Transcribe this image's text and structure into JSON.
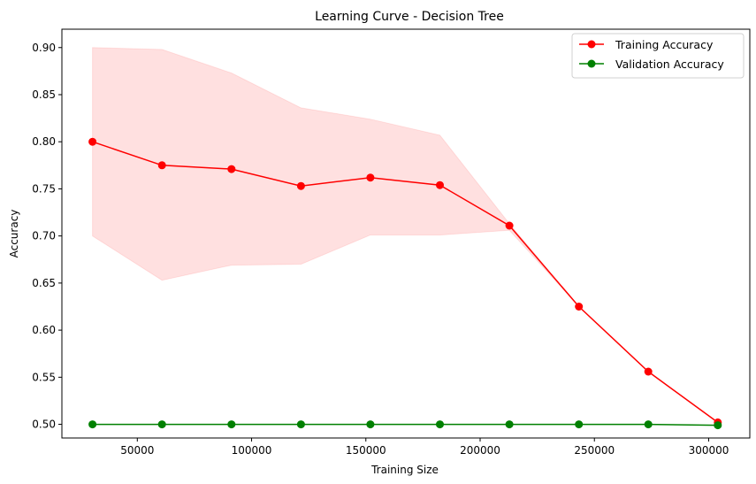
{
  "chart_data": {
    "type": "line",
    "title": "Learning Curve - Decision Tree",
    "xlabel": "Training Size",
    "ylabel": "Accuracy",
    "xlim": [
      17000,
      318000
    ],
    "ylim": [
      0.4855,
      0.9195
    ],
    "xticks": [
      50000,
      100000,
      150000,
      200000,
      250000,
      300000
    ],
    "xtick_labels": [
      "50000",
      "100000",
      "150000",
      "200000",
      "250000",
      "300000"
    ],
    "yticks": [
      0.5,
      0.55,
      0.6,
      0.65,
      0.7,
      0.75,
      0.8,
      0.85,
      0.9
    ],
    "ytick_labels": [
      "0.50",
      "0.55",
      "0.60",
      "0.65",
      "0.70",
      "0.75",
      "0.80",
      "0.85",
      "0.90"
    ],
    "grid": false,
    "legend_position": "top-right",
    "x": [
      30400,
      60800,
      91200,
      121600,
      152000,
      182400,
      212800,
      243200,
      273600,
      304000
    ],
    "series": [
      {
        "name": "Training Accuracy",
        "color": "#ff0000",
        "marker": "circle",
        "values": [
          0.8,
          0.775,
          0.771,
          0.753,
          0.762,
          0.754,
          0.711,
          0.625,
          0.556,
          0.502
        ],
        "band_upper": [
          0.9,
          0.898,
          0.873,
          0.836,
          0.824,
          0.807,
          0.713,
          0.625,
          0.556,
          0.502
        ],
        "band_lower": [
          0.7,
          0.653,
          0.669,
          0.67,
          0.701,
          0.701,
          0.706,
          0.625,
          0.556,
          0.502
        ],
        "band_color": "#ff0000",
        "band_opacity": 0.12
      },
      {
        "name": "Validation Accuracy",
        "color": "#008000",
        "marker": "circle",
        "values": [
          0.5,
          0.5,
          0.5,
          0.5,
          0.5,
          0.5,
          0.5,
          0.5,
          0.5,
          0.499
        ]
      }
    ]
  }
}
